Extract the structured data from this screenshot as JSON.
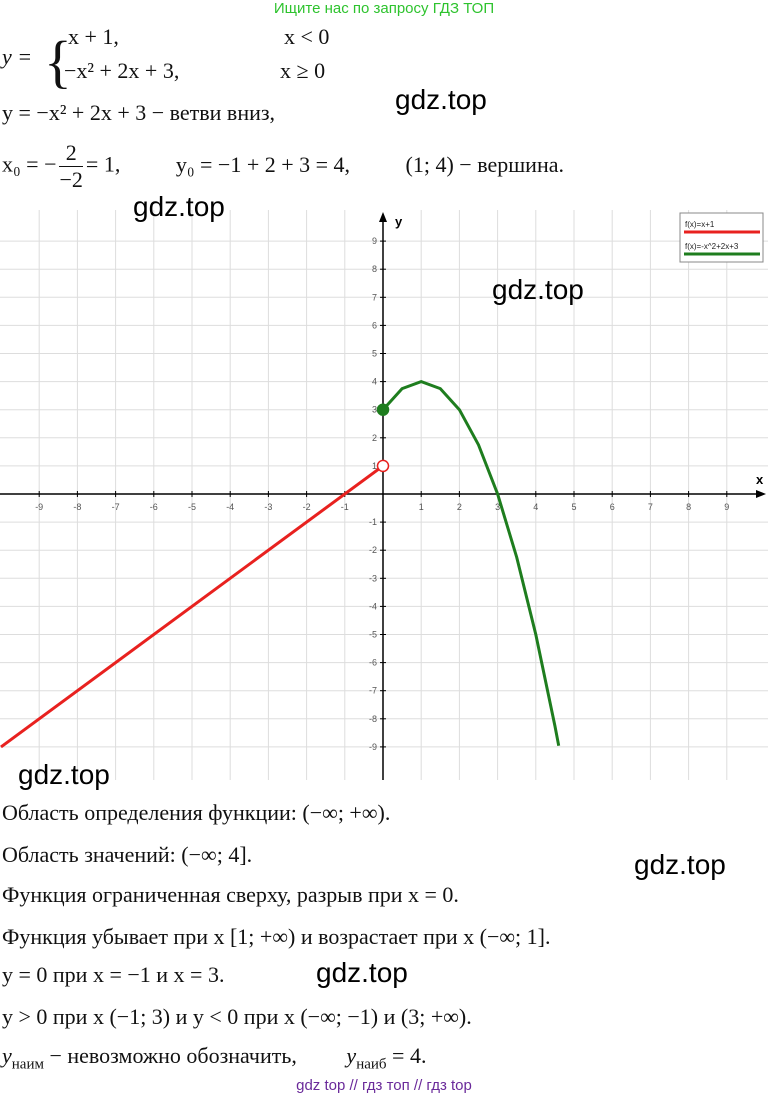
{
  "header": "Ищите нас по запросу ГДЗ ТОП",
  "piecewise": {
    "lhs": "y =",
    "row1_expr": "x + 1,",
    "row1_cond": "x < 0",
    "row2_expr": "−x² + 2x + 3,",
    "row2_cond": "x ≥ 0"
  },
  "line2": "y = −x² + 2x + 3 − ветви вниз,",
  "vertex": {
    "x0_lhs": "x₀ = −",
    "num": "2",
    "den": "−2",
    "x0_rhs": "= 1,",
    "y0": "y₀ = −1 + 2 + 3 = 4,",
    "vertex": "(1; 4) − вершина."
  },
  "graph": {
    "x_label": "x",
    "y_label": "y",
    "xlim": [
      -10,
      10
    ],
    "ylim": [
      -10,
      10
    ],
    "xticks": [
      -9,
      -8,
      -7,
      -6,
      -5,
      -4,
      -3,
      -2,
      -1,
      1,
      2,
      3,
      4,
      5,
      6,
      7,
      8,
      9
    ],
    "yticks": [
      -9,
      -8,
      -7,
      -6,
      -5,
      -4,
      -3,
      -2,
      -1,
      1,
      2,
      3,
      4,
      5,
      6,
      7,
      8,
      9
    ],
    "grid": true,
    "series": [
      {
        "name": "f(x)=x+1",
        "color": "#e8211f",
        "x": [
          -10,
          0
        ],
        "values": [
          -9,
          1
        ]
      },
      {
        "name": "f(x)=-x^2+2x+3",
        "color": "#1e7d1e",
        "x": [
          0,
          0.5,
          1,
          1.5,
          2,
          2.5,
          3,
          3.5,
          4,
          4.5,
          4.6
        ],
        "values": [
          3,
          3.75,
          4,
          3.75,
          3,
          1.75,
          0,
          -2.25,
          -5,
          -8.25,
          -8.96
        ]
      }
    ],
    "points": [
      {
        "x": 0,
        "y": 3,
        "filled": true,
        "color": "#1e7d1e"
      },
      {
        "x": 0,
        "y": 1,
        "filled": false,
        "color": "#e8211f"
      }
    ]
  },
  "lines": [
    "Область определения функции: (−∞; +∞).",
    "Область значений: (−∞; 4].",
    "Функция ограниченная сверху, разрыв при x = 0.",
    "Функция убывает при x [1; +∞) и возрастает при x (−∞; 1].",
    "y = 0 при x = −1 и x = 3.",
    "y > 0 при x (−1; 3) и y < 0 при x (−∞; −1) и (3; +∞)."
  ],
  "extremes": {
    "ymin_var": "y",
    "ymin_sub": "наим",
    "ymin_text": " − невозможно обозначить,",
    "ymax_var": "y",
    "ymax_sub": "наиб",
    "ymax_text": " = 4."
  },
  "watermarks": [
    "gdz.top",
    "gdz.top",
    "gdz.top",
    "gdz.top",
    "gdz.top",
    "gdz.top"
  ],
  "footer": "gdz top  //  гдз топ  //  гдз top"
}
